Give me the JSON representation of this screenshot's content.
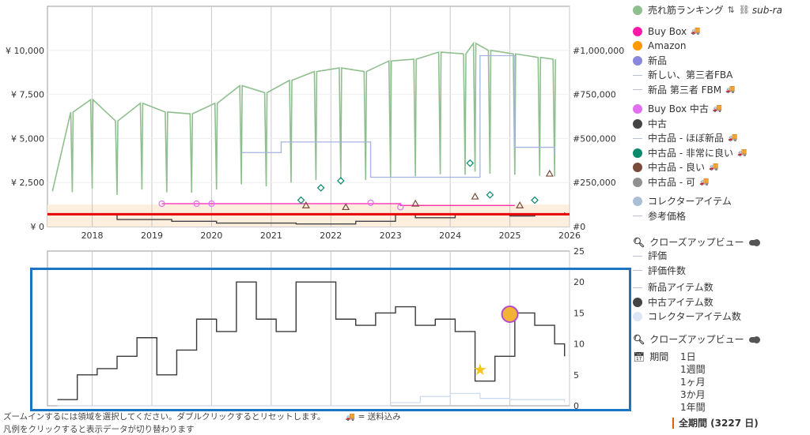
{
  "legend_upper": {
    "sales_rank": "売れ筋ランキング",
    "sub_rank": "sub-ra",
    "buy_box": "Buy Box",
    "amazon": "Amazon",
    "new": "新品",
    "new_3p_fba": "新しい、第三者FBA",
    "new_3p_fbm": "新品 第三者 FBM",
    "buy_box_used": "Buy Box 中古",
    "used": "中古",
    "used_like_new": "中古品 - ほぼ新品",
    "used_very_good": "中古品 - 非常に良い",
    "used_good": "中古品 - 良い",
    "used_acceptable": "中古品 - 可",
    "collectible": "コレクターアイテム",
    "reference_price": "参考価格",
    "closeup": "クローズアップビュー"
  },
  "legend_lower": {
    "rating": "評価",
    "rating_count": "評価件数",
    "new_offer_count": "新品アイテム数",
    "used_offer_count": "中古アイテム数",
    "collectible_offer_count": "コレクターアイテム数",
    "closeup": "クローズアップビュー",
    "period_label": "期間",
    "periods": [
      "1日",
      "1週間",
      "1ヶ月",
      "3か月",
      "1年間"
    ],
    "all_period": "全期間 (3227 日)"
  },
  "hints": {
    "zoom": "ズームインするには領域を選択してください。ダブルクリックするとリセットします。",
    "shipping": "= 送料込み",
    "legend_click": "凡例をクリックすると表示データが切り替わります"
  },
  "colors": {
    "sales_rank": "#8fbf8f",
    "buy_box": "#ff1aa8",
    "amazon": "#ff9900",
    "new": "#8888dd",
    "buy_box_used": "#e070f0",
    "used": "#444444",
    "used_very_good": "#0a8a6a",
    "used_good": "#7a4a3a",
    "used_acceptable": "#909090",
    "collectible": "#aabfd6",
    "reference_line": "#e60000",
    "highlight_box": "#1a76c4"
  },
  "chart_data": [
    {
      "type": "line",
      "x_range": [
        "2017-04",
        "2026-01"
      ],
      "x_ticks": [
        "2018",
        "2019",
        "2020",
        "2021",
        "2022",
        "2023",
        "2024",
        "2025",
        "2026"
      ],
      "y_left_ticks": [
        "¥ 0",
        "¥ 2,500",
        "¥ 5,000",
        "¥ 7,500",
        "¥ 10,000"
      ],
      "y_left_range": [
        0,
        12500
      ],
      "y_right_ticks": [
        "#0",
        "#250,000",
        "#500,000",
        "#750,000",
        "#1,000,000"
      ],
      "y_right_range": [
        0,
        1250000
      ],
      "series": [
        {
          "name": "売れ筋ランキング",
          "axis": "right",
          "x": [
            "2017-05",
            "2017-09",
            "2018-01",
            "2018-06",
            "2018-11",
            "2019-04",
            "2019-09",
            "2020-02",
            "2020-07",
            "2020-12",
            "2021-05",
            "2021-10",
            "2022-03",
            "2022-08",
            "2023-01",
            "2023-06",
            "2023-11",
            "2024-04",
            "2024-06",
            "2024-09",
            "2025-02",
            "2025-07",
            "2025-10"
          ],
          "values": [
            200000,
            650000,
            720000,
            600000,
            700000,
            650000,
            640000,
            700000,
            800000,
            760000,
            830000,
            880000,
            900000,
            880000,
            940000,
            950000,
            990000,
            980000,
            1040000,
            1000000,
            980000,
            960000,
            950000
          ]
        },
        {
          "name": "Buy Box",
          "axis": "left",
          "x": [
            "2019-03",
            "2022-10",
            "2023-03",
            "2024-03",
            "2024-07",
            "2025-02"
          ],
          "values": [
            1300,
            1300,
            1200,
            1200,
            1200,
            1200
          ]
        },
        {
          "name": "新品",
          "axis": "left",
          "x": [
            "2020-07",
            "2021-03",
            "2021-03",
            "2021-09",
            "2022-09",
            "2024-03",
            "2024-07",
            "2025-02",
            "2025-10"
          ],
          "values": [
            4200,
            4200,
            4800,
            4800,
            2800,
            2800,
            9700,
            4500,
            4100
          ]
        },
        {
          "name": "中古",
          "axis": "left",
          "x": [
            "2017-05",
            "2018-06",
            "2019-05",
            "2020-02",
            "2021-06",
            "2022-06",
            "2023-02",
            "2023-06",
            "2024-02",
            "2024-07",
            "2025-01",
            "2025-06",
            "2025-12"
          ],
          "values": [
            700,
            400,
            300,
            200,
            150,
            300,
            700,
            500,
            700,
            700,
            600,
            700,
            800
          ]
        },
        {
          "name": "reference_line",
          "axis": "left",
          "x": [
            "2017-04",
            "2026-01"
          ],
          "values": [
            700,
            700
          ]
        }
      ]
    },
    {
      "type": "line",
      "x_range": [
        "2017-04",
        "2026-01"
      ],
      "y_range": [
        0,
        25
      ],
      "y_ticks": [
        "0",
        "5",
        "10",
        "15",
        "20",
        "25"
      ],
      "series": [
        {
          "name": "中古アイテム数",
          "x": [
            "2017-06",
            "2017-10",
            "2018-02",
            "2018-06",
            "2018-10",
            "2019-02",
            "2019-06",
            "2019-10",
            "2020-02",
            "2020-06",
            "2020-10",
            "2021-02",
            "2021-06",
            "2021-10",
            "2022-02",
            "2022-06",
            "2022-10",
            "2023-02",
            "2023-06",
            "2023-10",
            "2024-02",
            "2024-06",
            "2024-10",
            "2025-02",
            "2025-06",
            "2025-10",
            "2025-12"
          ],
          "values": [
            1,
            5,
            6,
            8,
            11,
            5,
            9,
            14,
            12,
            20,
            14,
            12,
            20,
            20,
            14,
            13,
            15,
            16,
            13,
            14,
            12,
            4,
            8,
            15,
            13,
            10,
            8
          ]
        },
        {
          "name": "コレクターアイテム数",
          "x": [
            "2017-06",
            "2022-01",
            "2023-01",
            "2023-07",
            "2024-01",
            "2024-07",
            "2025-01",
            "2025-12"
          ],
          "values": [
            0,
            0,
            0.5,
            1.5,
            2,
            1.2,
            1,
            0.6
          ]
        }
      ]
    }
  ]
}
